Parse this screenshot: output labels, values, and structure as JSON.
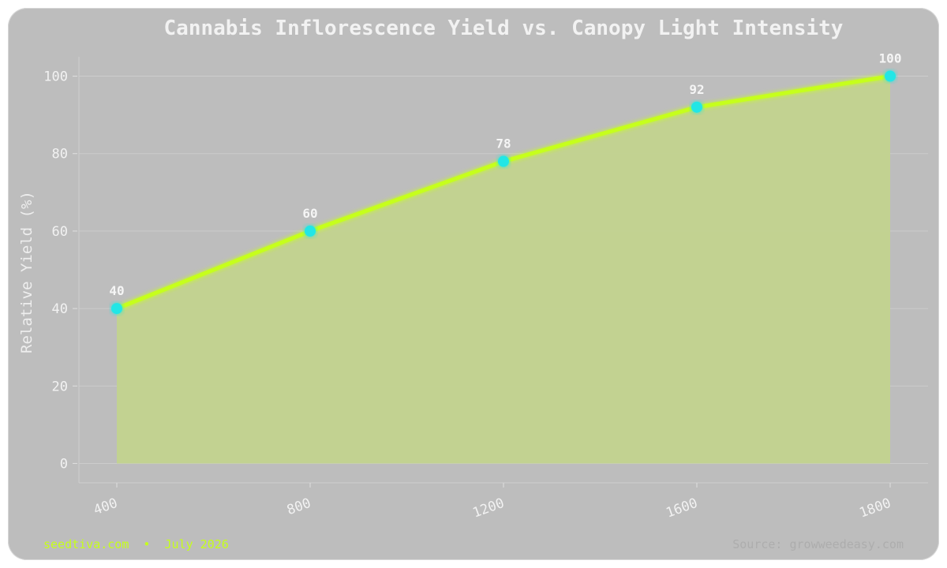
{
  "chart_data": {
    "type": "area",
    "title": "Cannabis Inflorescence Yield vs. Canopy Light Intensity",
    "xlabel": "",
    "ylabel": "Relative Yield (%)",
    "categories": [
      "400",
      "800",
      "1200",
      "1600",
      "1800"
    ],
    "values": [
      40,
      60,
      78,
      92,
      100
    ],
    "data_labels": [
      "40",
      "60",
      "78",
      "92",
      "100"
    ],
    "y_ticks": [
      "0",
      "20",
      "40",
      "60",
      "80",
      "100"
    ],
    "ylim": [
      -5,
      105
    ],
    "grid": true,
    "colors": {
      "line": "#c6ff1a",
      "markers": "#22e6e6",
      "fill": "#c2d48c"
    }
  },
  "footer": {
    "left": "seedtiva.com  •  July 2026",
    "right": "Source: growweedeasy.com"
  }
}
